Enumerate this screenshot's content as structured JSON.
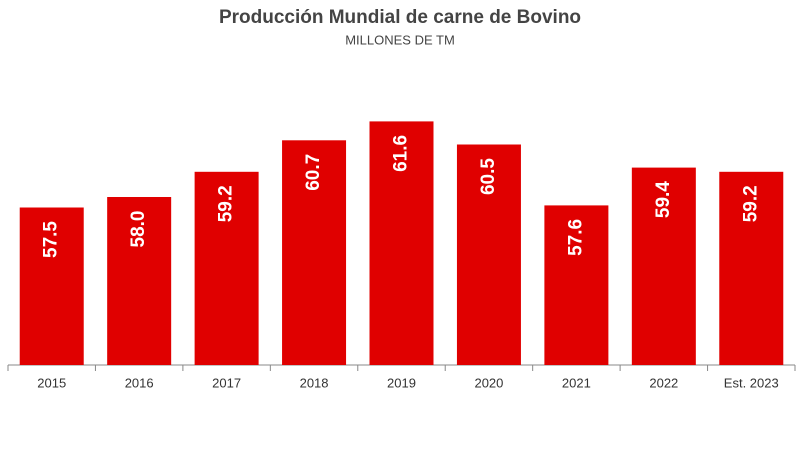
{
  "chart_data": {
    "type": "bar",
    "title": "Producción Mundial de carne de Bovino",
    "subtitle": "MILLONES DE TM",
    "categories": [
      "2015",
      "2016",
      "2017",
      "2018",
      "2019",
      "2020",
      "2021",
      "2022",
      "Est. 2023"
    ],
    "values": [
      57.5,
      58.0,
      59.2,
      60.7,
      61.6,
      60.5,
      57.6,
      59.4,
      59.2
    ],
    "value_labels": [
      "57.5",
      "58.0",
      "59.2",
      "60.7",
      "61.6",
      "60.5",
      "57.6",
      "59.4",
      "59.2"
    ],
    "color": "#e00000",
    "ylim": [
      50,
      63
    ],
    "grid": false
  }
}
